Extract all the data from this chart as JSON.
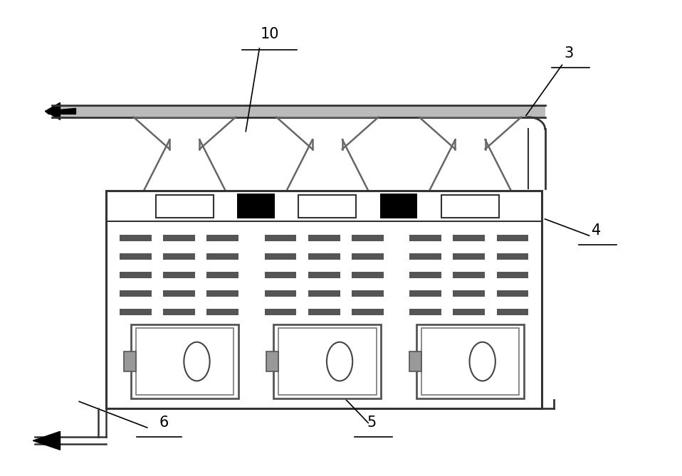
{
  "background_color": "#ffffff",
  "fig_width": 9.58,
  "fig_height": 6.69,
  "dpi": 100,
  "black": "#000000",
  "dark_gray": "#333333",
  "mid_gray": "#666666",
  "light_gray": "#aaaaaa",
  "pipe_gray": "#bbbbbb",
  "cols": [
    0.27,
    0.48,
    0.69
  ],
  "bx": 0.155,
  "by": 0.14,
  "bw": 0.64,
  "bh": 0.46
}
